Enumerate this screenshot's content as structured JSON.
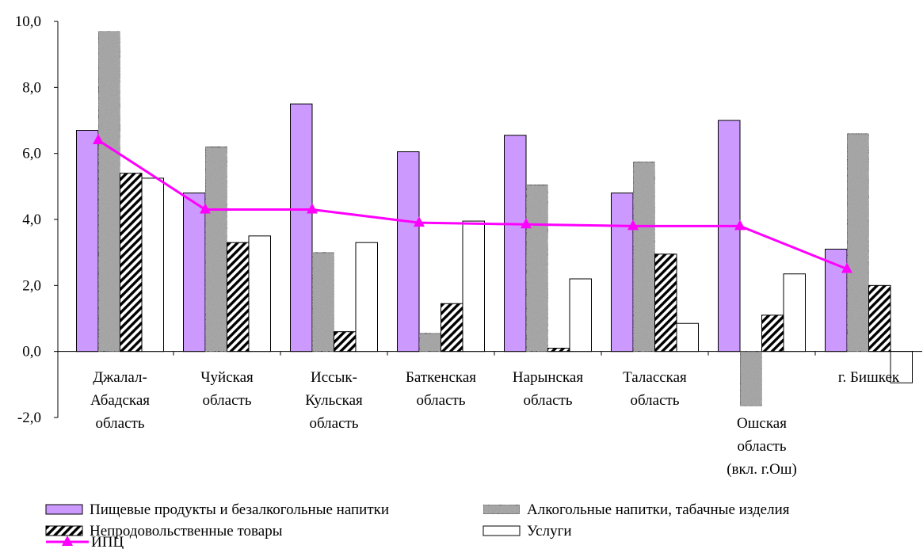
{
  "chart_data": {
    "type": "bar",
    "categories": [
      [
        "Джалал-",
        "Абадская",
        "область"
      ],
      [
        "Чуйская",
        "область"
      ],
      [
        "Иссык-",
        "Кульская",
        "область"
      ],
      [
        "Баткенская",
        "область"
      ],
      [
        "Нарынская",
        "область"
      ],
      [
        "Таласская",
        "область"
      ],
      [
        "",
        "",
        "Ошская",
        "область",
        "(вкл. г.Ош)"
      ],
      [
        "г. Бишкек"
      ]
    ],
    "series": [
      {
        "name": "Пищевые продукты и безалкогольные напитки",
        "kind": "bar",
        "color": "#cc99ff",
        "pattern": "solid",
        "values": [
          6.7,
          4.8,
          7.5,
          6.05,
          6.55,
          4.8,
          7.0,
          3.1
        ]
      },
      {
        "name": "Алкогольные напитки, табачные изделия",
        "kind": "bar",
        "color": "#8c8c8c",
        "pattern": "granite",
        "values": [
          9.7,
          6.2,
          3.0,
          0.55,
          5.05,
          5.75,
          -1.65,
          6.6
        ]
      },
      {
        "name": "Непродовольственные товары",
        "kind": "bar",
        "color": "#000000",
        "pattern": "hatch",
        "values": [
          5.4,
          3.3,
          0.6,
          1.45,
          0.1,
          2.95,
          1.1,
          2.0
        ]
      },
      {
        "name": "Услуги",
        "kind": "bar",
        "color": "#ffffff",
        "pattern": "empty",
        "values": [
          5.25,
          3.5,
          3.3,
          3.95,
          2.2,
          0.85,
          2.35,
          -0.95
        ]
      },
      {
        "name": "ИПЦ",
        "kind": "line",
        "color": "#ff00ff",
        "values": [
          6.4,
          4.3,
          4.3,
          3.9,
          3.85,
          3.8,
          3.8,
          2.5
        ]
      }
    ],
    "ylim": [
      -2.0,
      10.0
    ],
    "yticks": [
      "-2,0",
      "0,0",
      "2,0",
      "4,0",
      "6,0",
      "8,0",
      "10,0"
    ],
    "ytick_values": [
      -2,
      0,
      2,
      4,
      6,
      8,
      10
    ],
    "grid": false,
    "legend_placement": "bottom"
  }
}
